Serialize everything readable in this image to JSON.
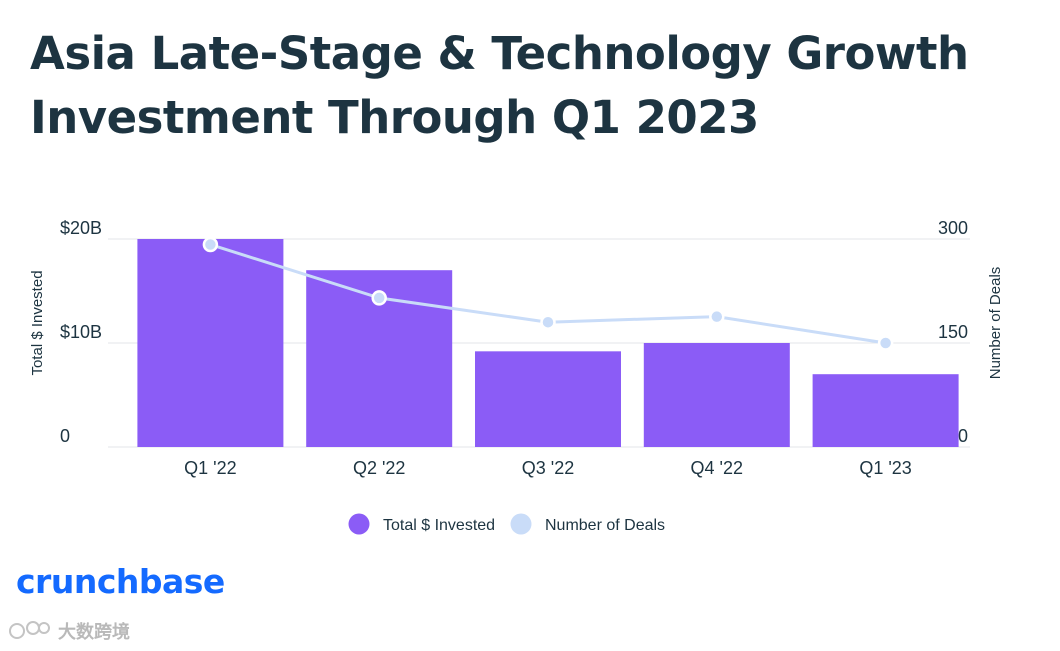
{
  "title_lines": [
    "Asia Late-Stage & Technology Growth",
    "Investment Through Q1 2023"
  ],
  "chart_data": {
    "type": "bar",
    "title": "Asia Late-Stage & Technology Growth Investment Through Q1 2023",
    "categories": [
      "Q1 '22",
      "Q2 '22",
      "Q3 '22",
      "Q4 '22",
      "Q1 '23"
    ],
    "series": [
      {
        "name": "Total $ Invested",
        "type": "bar",
        "axis": "left",
        "unit": "B",
        "values": [
          20,
          17,
          9.2,
          10,
          7
        ],
        "color": "#8b5cf6"
      },
      {
        "name": "Number of Deals",
        "type": "line",
        "axis": "right",
        "values": [
          292,
          215,
          180,
          188,
          150
        ],
        "color": "#c9dcf8"
      }
    ],
    "y_left": {
      "label": "Total $ Invested",
      "ylim": [
        0,
        20
      ],
      "ticks": [
        0,
        10,
        20
      ],
      "tick_labels": [
        "0",
        "$10B",
        "$20B"
      ]
    },
    "y_right": {
      "label": "Number of Deals",
      "ylim": [
        0,
        300
      ],
      "ticks": [
        0,
        150,
        300
      ],
      "tick_labels": [
        "0",
        "150",
        "300"
      ]
    },
    "grid": true,
    "legend_position": "bottom-center"
  },
  "brand": "crunchbase",
  "watermark": "大数跨境"
}
